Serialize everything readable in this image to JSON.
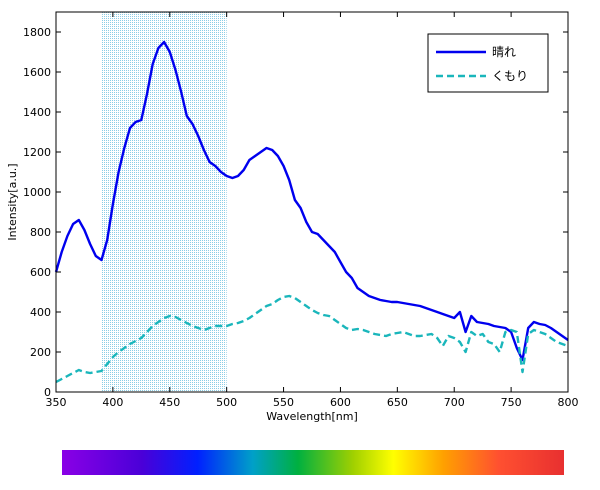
{
  "chart_data": {
    "type": "line",
    "xlabel": "Wavelength[nm]",
    "ylabel": "Intensity[a.u.]",
    "xlim": [
      350,
      800
    ],
    "ylim": [
      0,
      1900
    ],
    "xticks": [
      350,
      400,
      450,
      500,
      550,
      600,
      650,
      700,
      750,
      800
    ],
    "yticks": [
      0,
      200,
      400,
      600,
      800,
      1000,
      1200,
      1400,
      1600,
      1800
    ],
    "grid": false,
    "legend_position": "top-right",
    "highlight_band": {
      "x_start": 390,
      "x_end": 500,
      "color": "#7ec8e3"
    },
    "spectrum_bar": {
      "x_start": 400,
      "x_end": 700
    },
    "series": [
      {
        "name": "晴れ",
        "color": "#0000ee",
        "style": "solid",
        "x": [
          350,
          355,
          360,
          365,
          370,
          375,
          380,
          385,
          390,
          395,
          400,
          405,
          410,
          415,
          420,
          425,
          430,
          435,
          440,
          445,
          450,
          455,
          460,
          465,
          470,
          475,
          480,
          485,
          490,
          495,
          500,
          505,
          510,
          515,
          520,
          525,
          530,
          535,
          540,
          545,
          550,
          555,
          560,
          565,
          570,
          575,
          580,
          585,
          590,
          595,
          600,
          605,
          610,
          615,
          620,
          625,
          630,
          635,
          640,
          645,
          650,
          655,
          660,
          665,
          670,
          675,
          680,
          685,
          690,
          695,
          700,
          705,
          710,
          715,
          720,
          725,
          730,
          735,
          740,
          745,
          750,
          755,
          760,
          765,
          770,
          775,
          780,
          785,
          790,
          795,
          800
        ],
        "y": [
          600,
          700,
          780,
          840,
          860,
          810,
          740,
          680,
          660,
          760,
          940,
          1100,
          1220,
          1320,
          1350,
          1360,
          1490,
          1640,
          1720,
          1750,
          1700,
          1610,
          1500,
          1380,
          1340,
          1280,
          1210,
          1150,
          1130,
          1100,
          1080,
          1070,
          1080,
          1110,
          1160,
          1180,
          1200,
          1220,
          1210,
          1180,
          1130,
          1060,
          960,
          920,
          850,
          800,
          790,
          760,
          730,
          700,
          650,
          600,
          570,
          520,
          500,
          480,
          470,
          460,
          455,
          450,
          450,
          445,
          440,
          435,
          430,
          420,
          410,
          400,
          390,
          380,
          370,
          400,
          300,
          380,
          350,
          345,
          340,
          330,
          325,
          320,
          300,
          220,
          160,
          320,
          350,
          340,
          335,
          320,
          300,
          280,
          260
        ]
      },
      {
        "name": "くもり",
        "color": "#1ab6bb",
        "style": "dashed",
        "x": [
          350,
          355,
          360,
          365,
          370,
          375,
          380,
          385,
          390,
          395,
          400,
          405,
          410,
          415,
          420,
          425,
          430,
          435,
          440,
          445,
          450,
          455,
          460,
          465,
          470,
          475,
          480,
          485,
          490,
          495,
          500,
          505,
          510,
          515,
          520,
          525,
          530,
          535,
          540,
          545,
          550,
          555,
          560,
          565,
          570,
          575,
          580,
          585,
          590,
          595,
          600,
          605,
          610,
          615,
          620,
          625,
          630,
          635,
          640,
          645,
          650,
          655,
          660,
          665,
          670,
          675,
          680,
          685,
          690,
          695,
          700,
          705,
          710,
          715,
          720,
          725,
          730,
          735,
          740,
          745,
          750,
          755,
          760,
          765,
          770,
          775,
          780,
          785,
          790,
          795,
          800
        ],
        "y": [
          50,
          65,
          80,
          95,
          110,
          100,
          95,
          100,
          105,
          140,
          175,
          200,
          220,
          240,
          255,
          270,
          300,
          330,
          350,
          370,
          380,
          375,
          360,
          345,
          330,
          320,
          310,
          320,
          330,
          330,
          330,
          340,
          345,
          355,
          370,
          390,
          410,
          430,
          440,
          460,
          475,
          480,
          470,
          450,
          430,
          410,
          395,
          385,
          380,
          360,
          340,
          320,
          310,
          315,
          310,
          300,
          290,
          285,
          280,
          290,
          295,
          300,
          290,
          280,
          280,
          285,
          290,
          270,
          230,
          280,
          270,
          250,
          200,
          300,
          280,
          290,
          250,
          240,
          200,
          300,
          310,
          300,
          100,
          290,
          310,
          300,
          290,
          270,
          250,
          240,
          230
        ]
      }
    ]
  }
}
